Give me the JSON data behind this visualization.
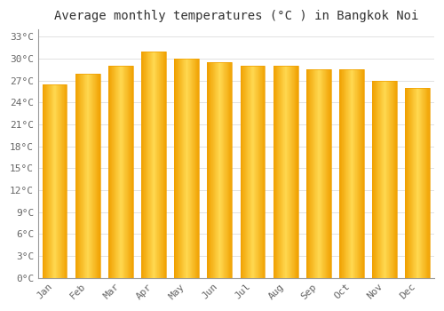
{
  "title": "Average monthly temperatures (°C ) in Bangkok Noi",
  "months": [
    "Jan",
    "Feb",
    "Mar",
    "Apr",
    "May",
    "Jun",
    "Jul",
    "Aug",
    "Sep",
    "Oct",
    "Nov",
    "Dec"
  ],
  "values": [
    26.5,
    28.0,
    29.0,
    31.0,
    30.0,
    29.5,
    29.0,
    29.0,
    28.5,
    28.5,
    27.0,
    26.0
  ],
  "bar_color_center": "#FFD050",
  "bar_color_edge": "#F0A000",
  "background_color": "#FFFFFF",
  "plot_bg_color": "#FFFFFF",
  "grid_color": "#DDDDDD",
  "text_color": "#666666",
  "title_color": "#333333",
  "spine_color": "#999999",
  "ylim": [
    0,
    34
  ],
  "yticks": [
    0,
    3,
    6,
    9,
    12,
    15,
    18,
    21,
    24,
    27,
    30,
    33
  ],
  "ylabel_suffix": "°C",
  "title_fontsize": 10,
  "tick_fontsize": 8,
  "figsize": [
    5.0,
    3.5
  ],
  "dpi": 100
}
